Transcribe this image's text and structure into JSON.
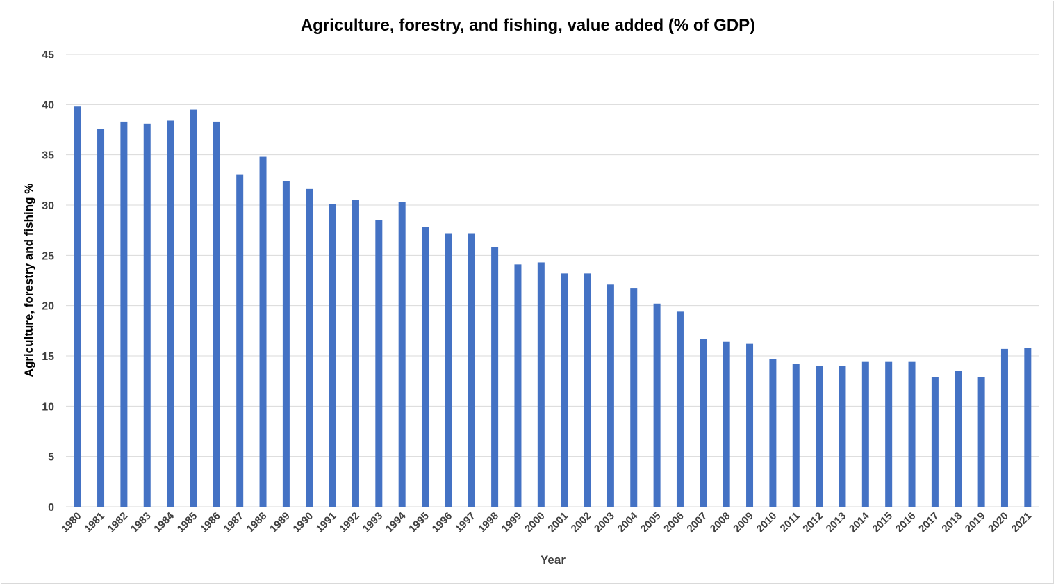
{
  "chart_data": {
    "type": "bar",
    "title": "Agriculture, forestry, and fishing, value added (% of GDP)",
    "xlabel": "Year",
    "ylabel": "Agriculture, forestry and fishing %",
    "ylim": [
      0,
      45
    ],
    "yticks": [
      0,
      5,
      10,
      15,
      20,
      25,
      30,
      35,
      40,
      45
    ],
    "grid": true,
    "legend": "none",
    "bar_color": "#4472c4",
    "categories": [
      "1980",
      "1981",
      "1982",
      "1983",
      "1984",
      "1985",
      "1986",
      "1987",
      "1988",
      "1989",
      "1990",
      "1991",
      "1992",
      "1993",
      "1994",
      "1995",
      "1996",
      "1997",
      "1998",
      "1999",
      "2000",
      "2001",
      "2002",
      "2003",
      "2004",
      "2005",
      "2006",
      "2007",
      "2008",
      "2009",
      "2010",
      "2011",
      "2012",
      "2013",
      "2014",
      "2015",
      "2016",
      "2017",
      "2018",
      "2019",
      "2020",
      "2021"
    ],
    "values": [
      39.8,
      37.6,
      38.3,
      38.1,
      38.4,
      39.5,
      38.3,
      33.0,
      34.8,
      32.4,
      31.6,
      30.1,
      30.5,
      28.5,
      30.3,
      27.8,
      27.2,
      27.2,
      25.8,
      24.1,
      24.3,
      23.2,
      23.2,
      22.1,
      21.7,
      20.2,
      19.4,
      16.7,
      16.4,
      16.2,
      14.7,
      14.2,
      14.0,
      14.0,
      14.4,
      14.4,
      14.4,
      12.9,
      13.5,
      12.9,
      15.7,
      15.8
    ]
  }
}
